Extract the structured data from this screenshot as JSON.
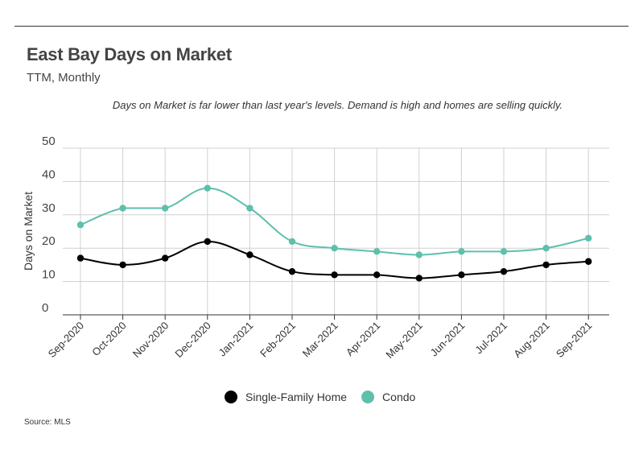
{
  "header": {
    "title": "East Bay Days on Market",
    "subtitle": "TTM, Monthly",
    "annotation": "Days on Market is far lower than last year's levels. Demand is high and homes are selling quickly."
  },
  "footer": {
    "source": "Source:  MLS"
  },
  "chart_data": {
    "type": "line",
    "title": "East Bay Days on Market",
    "subtitle": "TTM, Monthly",
    "xlabel": "",
    "ylabel": "Days on Market",
    "ylim": [
      0,
      50
    ],
    "yticks": [
      "0",
      "10",
      "20",
      "30",
      "40",
      "50"
    ],
    "grid": true,
    "legend_position": "bottom-center",
    "categories": [
      "Sep-2020",
      "Oct-2020",
      "Nov-2020",
      "Dec-2020",
      "Jan-2021",
      "Feb-2021",
      "Mar-2021",
      "Apr-2021",
      "May-2021",
      "Jun-2021",
      "Jul-2021",
      "Aug-2021",
      "Sep-2021"
    ],
    "series": [
      {
        "name": "Single-Family Home",
        "color": "#000000",
        "values": [
          17,
          15,
          17,
          22,
          18,
          13,
          12,
          12,
          11,
          12,
          13,
          15,
          16
        ]
      },
      {
        "name": "Condo",
        "color": "#5ec0ac",
        "values": [
          27,
          32,
          32,
          38,
          32,
          22,
          20,
          19,
          18,
          19,
          19,
          20,
          23
        ]
      }
    ]
  }
}
